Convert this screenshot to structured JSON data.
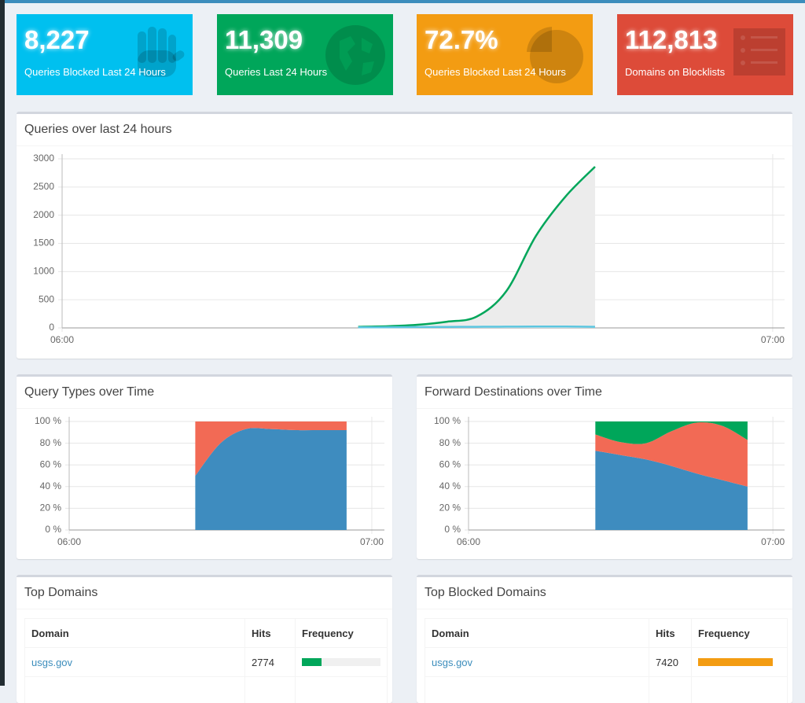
{
  "stats": [
    {
      "value": "8,227",
      "label": "Queries Blocked Last 24 Hours"
    },
    {
      "value": "11,309",
      "label": "Queries Last 24 Hours"
    },
    {
      "value": "72.7%",
      "label": "Queries Blocked Last 24 Hours"
    },
    {
      "value": "112,813",
      "label": "Domains on Blocklists"
    }
  ],
  "queries": {
    "type": "line",
    "title": "Queries over last 24 hours",
    "x": [
      25,
      27.5,
      30,
      32.5,
      35,
      37.5,
      40,
      42.5,
      45
    ],
    "xlim": [
      0,
      61
    ],
    "xticks": [
      {
        "value": 0,
        "label": "06:00"
      },
      {
        "value": 60,
        "label": "07:00"
      }
    ],
    "ylim": [
      0,
      3000
    ],
    "yticks": [
      0,
      500,
      1000,
      1500,
      2000,
      2500,
      3000
    ],
    "grid": true,
    "series": [
      {
        "color": "#00a65a",
        "fill": "#ececec",
        "values": [
          20,
          30,
          55,
          110,
          200,
          650,
          1630,
          2330,
          2860
        ]
      },
      {
        "color": "#5bc6e0",
        "values": [
          10,
          12,
          15,
          18,
          20,
          22,
          25,
          24,
          20
        ]
      }
    ]
  },
  "query_types": {
    "type": "stacked_area",
    "title": "Query Types over Time",
    "x": [
      25,
      30,
      35,
      40,
      45,
      50,
      55
    ],
    "xlim": [
      0,
      62.5
    ],
    "xticks": [
      {
        "value": 0,
        "label": "06:00"
      },
      {
        "value": 60,
        "label": "07:00"
      }
    ],
    "ylim": [
      0,
      100
    ],
    "yticks": [
      {
        "value": 0,
        "label": "0 %"
      },
      {
        "value": 20,
        "label": "20 %"
      },
      {
        "value": 40,
        "label": "40 %"
      },
      {
        "value": 60,
        "label": "60 %"
      },
      {
        "value": 80,
        "label": "80 %"
      },
      {
        "value": 100,
        "label": "100 %"
      }
    ],
    "grid": true,
    "series": [
      {
        "color": "#3e8cbf",
        "values": [
          50,
          80,
          93,
          93,
          92,
          92,
          92
        ]
      },
      {
        "color": "#f26a55",
        "values": [
          50,
          20,
          7,
          7,
          8,
          8,
          8
        ]
      }
    ]
  },
  "forward_destinations": {
    "type": "stacked_area",
    "title": "Forward Destinations over Time",
    "x": [
      25,
      30,
      35,
      40,
      45,
      50,
      55
    ],
    "xlim": [
      0,
      62.3
    ],
    "xticks": [
      {
        "value": 0,
        "label": "06:00"
      },
      {
        "value": 60,
        "label": "07:00"
      }
    ],
    "ylim": [
      0,
      100
    ],
    "yticks": [
      {
        "value": 0,
        "label": "0 %"
      },
      {
        "value": 20,
        "label": "20 %"
      },
      {
        "value": 40,
        "label": "40 %"
      },
      {
        "value": 60,
        "label": "60 %"
      },
      {
        "value": 80,
        "label": "80 %"
      },
      {
        "value": 100,
        "label": "100 %"
      }
    ],
    "grid": true,
    "series": [
      {
        "color": "#3e8cbf",
        "values": [
          73,
          69,
          65,
          59,
          52,
          46,
          40
        ]
      },
      {
        "color": "#f26a55",
        "values": [
          15,
          12,
          15,
          32,
          47,
          50,
          43
        ]
      },
      {
        "color": "#00a65a",
        "values": [
          12,
          19,
          20,
          9,
          1,
          4,
          17
        ]
      }
    ]
  },
  "top_domains": {
    "title": "Top Domains",
    "columns": [
      "Domain",
      "Hits",
      "Frequency"
    ],
    "rows": [
      {
        "domain": "usgs.gov",
        "hits": 2774,
        "frequency": 24.5
      }
    ],
    "bar_color": "#00a65a"
  },
  "top_blocked": {
    "title": "Top Blocked Domains",
    "columns": [
      "Domain",
      "Hits",
      "Frequency"
    ],
    "rows": [
      {
        "domain": "usgs.gov",
        "hits": 7420,
        "frequency": 90.2
      }
    ],
    "bar_color": "#f39c12"
  }
}
